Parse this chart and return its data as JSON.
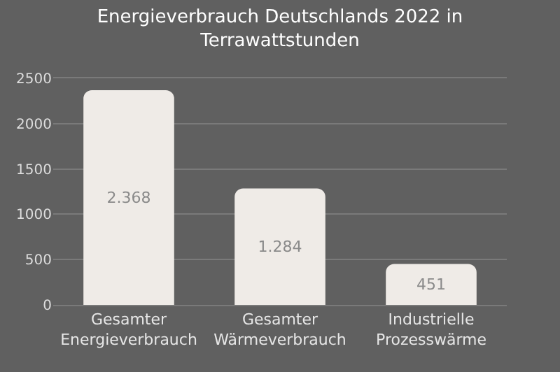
{
  "chart_data": {
    "type": "bar",
    "title": "Energieverbrauch Deutschlands 2022 in Terrawattstunden",
    "categories": [
      "Gesamter Energieverbrauch",
      "Gesamter Wärmeverbrauch",
      "Industrielle Prozesswärme"
    ],
    "values": [
      2368,
      1284,
      451
    ],
    "value_labels": [
      "2.368",
      "1.284",
      "451"
    ],
    "color": "#efebe7",
    "ylim": [
      0,
      2500
    ],
    "yticks": [
      0,
      500,
      1000,
      1500,
      2000,
      2500
    ],
    "grid": "y",
    "legend": false
  }
}
